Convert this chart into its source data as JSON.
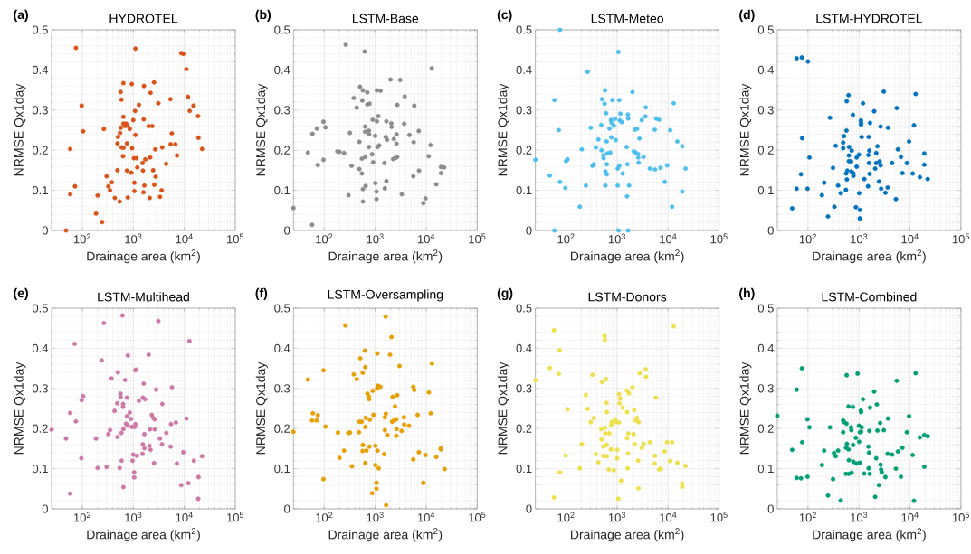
{
  "chart_data": [
    {
      "type": "scatter",
      "title": "HYDROTEL",
      "annotations": [
        "(a)"
      ],
      "xlabel": "Drainage area (km$^{2}$)",
      "ylabel": "NRMSE Qx1day",
      "color": "#d95319",
      "log": "x",
      "grid": true,
      "marker": "circle",
      "xlim": [
        25,
        100000
      ],
      "ylim": [
        0,
        0.5
      ],
      "xticks": [
        {
          "value": 100,
          "label": "10$^{2}$"
        },
        {
          "value": 1000,
          "label": "10$^{3}$"
        },
        {
          "value": 10000,
          "label": "10$^{4}$"
        },
        {
          "value": 100000,
          "label": "10$^{5}$"
        }
      ],
      "yticks": [
        0,
        0.1,
        0.2,
        0.3,
        0.4,
        0.5
      ],
      "x": [
        48,
        75,
        58,
        58,
        72,
        97,
        104,
        186,
        200,
        245,
        265,
        300,
        325,
        350,
        380,
        435,
        490,
        490,
        500,
        540,
        550,
        565,
        570,
        585,
        590,
        630,
        640,
        640,
        640,
        645,
        690,
        725,
        750,
        750,
        775,
        780,
        850,
        910,
        935,
        950,
        1000,
        1030,
        1050,
        1050,
        1100,
        1080,
        1100,
        1150,
        1200,
        1290,
        1520,
        1550,
        1580,
        1600,
        1620,
        1650,
        1720,
        2000,
        2100,
        2150,
        2180,
        2350,
        2450,
        2550,
        2580,
        2700,
        2750,
        3100,
        3350,
        3600,
        3700,
        4400,
        5350,
        5400,
        5700,
        6700,
        7200,
        8700,
        9550,
        11000,
        11800,
        12800,
        15200,
        18600,
        19000,
        22300
      ],
      "values": [
        0,
        0.455,
        0.203,
        0.09,
        0.11,
        0.311,
        0.247,
        0.042,
        0.087,
        0.021,
        0.253,
        0.135,
        0.11,
        0.1,
        0.12,
        0.081,
        0.217,
        0.15,
        0.233,
        0.072,
        0.243,
        0.345,
        0.256,
        0.326,
        0.207,
        0.185,
        0.266,
        0.283,
        0.367,
        0.206,
        0.26,
        0.266,
        0.149,
        0.217,
        0.261,
        0.082,
        0.253,
        0.144,
        0.365,
        0.205,
        0.275,
        0.18,
        0.119,
        0.098,
        0.453,
        0.298,
        0.238,
        0.18,
        0.157,
        0.313,
        0.168,
        0.149,
        0.095,
        0.277,
        0.36,
        0.112,
        0.177,
        0.26,
        0.081,
        0.182,
        0.343,
        0.26,
        0.15,
        0.369,
        0.114,
        0.202,
        0.134,
        0.317,
        0.084,
        0.1,
        0.207,
        0.166,
        0.327,
        0.215,
        0.242,
        0.215,
        0.187,
        0.442,
        0.44,
        0.402,
        0.333,
        0.298,
        0.311,
        0.285,
        0.231,
        0.203
      ]
    },
    {
      "type": "scatter",
      "title": "LSTM-Base",
      "annotations": [
        "(b)"
      ],
      "xlabel": "Drainage area (km$^{2}$)",
      "ylabel": "NRMSE Qx1day",
      "color": "#8c8c8c",
      "log": "x",
      "grid": true,
      "marker": "circle",
      "xlim": [
        25,
        100000
      ],
      "ylim": [
        0,
        0.5
      ],
      "xticks": [
        {
          "value": 100,
          "label": "10$^{2}$"
        },
        {
          "value": 1000,
          "label": "10$^{3}$"
        },
        {
          "value": 10000,
          "label": "10$^{4}$"
        },
        {
          "value": 100000,
          "label": "10$^{5}$"
        }
      ],
      "yticks": [
        0,
        0.1,
        0.2,
        0.3,
        0.4,
        0.5
      ],
      "x": [
        25,
        58,
        48,
        59,
        72,
        75,
        97,
        97,
        106,
        182,
        200,
        245,
        265,
        300,
        320,
        345,
        380,
        435,
        490,
        490,
        505,
        550,
        550,
        560,
        575,
        575,
        575,
        620,
        635,
        635,
        640,
        650,
        700,
        700,
        755,
        760,
        775,
        755,
        870,
        895,
        910,
        1000,
        1010,
        1060,
        1060,
        1080,
        1080,
        1110,
        1150,
        1200,
        1270,
        1520,
        1550,
        1610,
        1660,
        1660,
        1700,
        2000,
        2080,
        2100,
        2250,
        2330,
        2500,
        2620,
        2620,
        2700,
        2720,
        3100,
        3330,
        3700,
        3800,
        4700,
        5700,
        5850,
        5600,
        7250,
        7150,
        8800,
        9700,
        11200,
        12200,
        12900,
        15800,
        19500,
        19500,
        22500
      ],
      "values": [
        0.056,
        0.014,
        0.194,
        0.241,
        0.254,
        0.163,
        0.271,
        0.176,
        0.257,
        0.197,
        0.196,
        0.193,
        0.463,
        0.088,
        0.243,
        0.161,
        0.33,
        0.306,
        0.221,
        0.153,
        0.358,
        0.179,
        0.142,
        0.324,
        0.349,
        0.103,
        0.072,
        0.446,
        0.259,
        0.246,
        0.183,
        0.111,
        0.344,
        0.314,
        0.249,
        0.24,
        0.316,
        0.208,
        0.19,
        0.276,
        0.17,
        0.236,
        0.118,
        0.078,
        0.097,
        0.349,
        0.272,
        0.208,
        0.285,
        0.212,
        0.348,
        0.168,
        0.105,
        0.233,
        0.272,
        0.123,
        0.226,
        0.376,
        0.267,
        0.258,
        0.178,
        0.228,
        0.181,
        0.216,
        0.24,
        0.183,
        0.313,
        0.375,
        0.09,
        0.266,
        0.334,
        0.238,
        0.22,
        0.311,
        0.135,
        0.149,
        0.248,
        0.068,
        0.08,
        0.185,
        0.213,
        0.404,
        0.115,
        0.158,
        0.143,
        0.157
      ]
    },
    {
      "type": "scatter",
      "title": "LSTM-Meteo",
      "annotations": [
        "(c)"
      ],
      "xlabel": "Drainage area (km$^{2}$)",
      "ylabel": "NRMSE Qx1day",
      "color": "#4dbeee",
      "log": "x",
      "grid": true,
      "marker": "circle",
      "xlim": [
        25,
        100000
      ],
      "ylim": [
        0,
        0.5
      ],
      "xticks": [
        {
          "value": 100,
          "label": "10$^{2}$"
        },
        {
          "value": 1000,
          "label": "10$^{3}$"
        },
        {
          "value": 10000,
          "label": "10$^{4}$"
        },
        {
          "value": 100000,
          "label": "10$^{5}$"
        }
      ],
      "yticks": [
        0,
        0.1,
        0.2,
        0.3,
        0.4,
        0.5
      ],
      "x": [
        25,
        48,
        59,
        59,
        72,
        76,
        76,
        97,
        100,
        107,
        186,
        203,
        245,
        265,
        305,
        330,
        350,
        385,
        430,
        490,
        495,
        505,
        540,
        545,
        570,
        580,
        590,
        590,
        610,
        625,
        630,
        630,
        640,
        710,
        735,
        760,
        775,
        785,
        810,
        865,
        915,
        945,
        1030,
        1030,
        1060,
        1070,
        1100,
        1110,
        1130,
        1160,
        1240,
        1290,
        1540,
        1570,
        1590,
        1630,
        1650,
        1650,
        1720,
        2010,
        2130,
        2220,
        2300,
        2460,
        2570,
        2600,
        2650,
        2750,
        3050,
        3300,
        3650,
        3600,
        4400,
        5550,
        5500,
        5850,
        6650,
        7100,
        8600,
        9600,
        11000,
        12000,
        12900,
        15200,
        19000,
        19000,
        22000
      ],
      "values": [
        0.176,
        0.137,
        0,
        0.325,
        0.25,
        0.5,
        0.121,
        0.106,
        0.173,
        0.177,
        0.059,
        0.202,
        0.112,
        0.395,
        0.256,
        0.161,
        0.165,
        0.207,
        0.227,
        0.263,
        0.2,
        0.327,
        0.188,
        0.18,
        0.316,
        0.349,
        0.147,
        0.112,
        0.292,
        0.222,
        0.165,
        0.14,
        0.192,
        0.254,
        0.194,
        0.275,
        0.232,
        0.268,
        0.325,
        0.261,
        0.278,
        0.225,
        0.154,
        0.112,
        0.445,
        0,
        0.325,
        0.161,
        0.274,
        0.291,
        0.27,
        0.142,
        0.208,
        0.085,
        0.165,
        0.289,
        0.279,
        0,
        0.112,
        0.345,
        0.197,
        0.251,
        0.194,
        0.253,
        0.191,
        0.182,
        0.169,
        0.229,
        0.275,
        0.183,
        0.307,
        0.284,
        0.154,
        0.152,
        0.251,
        0.279,
        0.276,
        0.156,
        0.121,
        0.162,
        0.25,
        0.059,
        0.317,
        0.222,
        0.097,
        0.21,
        0.154
      ]
    },
    {
      "type": "scatter",
      "title": "LSTM-HYDROTEL",
      "annotations": [
        "(d)"
      ],
      "xlabel": "Drainage area (km$^{2}$)",
      "ylabel": "NRMSE Qx1day",
      "color": "#0072bd",
      "log": "x",
      "grid": true,
      "marker": "circle",
      "xlim": [
        25,
        100000
      ],
      "ylim": [
        0,
        0.5
      ],
      "xticks": [
        {
          "value": 100,
          "label": "10$^{2}$"
        },
        {
          "value": 1000,
          "label": "10$^{3}$"
        },
        {
          "value": 10000,
          "label": "10$^{4}$"
        },
        {
          "value": 100000,
          "label": "10$^{5}$"
        }
      ],
      "yticks": [
        0,
        0.1,
        0.2,
        0.3,
        0.4,
        0.5
      ],
      "x": [
        49,
        60,
        60,
        73,
        76,
        77,
        98,
        100,
        107,
        188,
        208,
        247,
        270,
        310,
        330,
        350,
        390,
        440,
        490,
        490,
        510,
        555,
        560,
        570,
        575,
        580,
        590,
        625,
        635,
        640,
        635,
        700,
        710,
        720,
        760,
        770,
        780,
        870,
        900,
        900,
        1000,
        1010,
        1040,
        1040,
        1090,
        1100,
        1100,
        1130,
        1200,
        1270,
        1510,
        1530,
        1550,
        1570,
        1600,
        1620,
        1650,
        1990,
        2080,
        2180,
        2180,
        2300,
        2470,
        2540,
        2650,
        2650,
        2720,
        3070,
        3300,
        3650,
        3700,
        4470,
        5500,
        5300,
        5800,
        6650,
        7100,
        8700,
        9600,
        11300,
        12000,
        12900,
        15600,
        19100,
        19100,
        22300
      ],
      "values": [
        0.055,
        0.104,
        0.429,
        0.14,
        0.431,
        0.23,
        0.104,
        0.421,
        0.182,
        0.088,
        0.119,
        0.035,
        0.281,
        0.156,
        0.059,
        0.211,
        0.112,
        0.093,
        0.219,
        0.205,
        0.235,
        0.101,
        0.142,
        0.249,
        0.322,
        0.127,
        0.149,
        0.337,
        0.187,
        0.208,
        0.173,
        0.172,
        0.147,
        0.199,
        0.288,
        0.143,
        0.136,
        0.058,
        0.182,
        0.159,
        0.189,
        0.093,
        0.051,
        0.03,
        0.274,
        0.268,
        0.264,
        0.233,
        0.317,
        0.128,
        0.11,
        0.188,
        0.233,
        0.168,
        0.199,
        0.141,
        0.268,
        0.297,
        0.154,
        0.193,
        0.168,
        0.21,
        0.122,
        0.172,
        0.259,
        0.162,
        0.104,
        0.346,
        0.094,
        0.107,
        0.256,
        0.168,
        0.305,
        0.078,
        0.202,
        0.183,
        0.143,
        0.168,
        0.222,
        0.142,
        0.262,
        0.34,
        0.133,
        0.192,
        0.164,
        0.128
      ]
    },
    {
      "type": "scatter",
      "title": "LSTM-Multihead",
      "annotations": [
        "(e)"
      ],
      "xlabel": "Drainage area (km$^{2}$)",
      "ylabel": "NRMSE Qx1day",
      "color": "#cc79a7",
      "log": "x",
      "grid": true,
      "marker": "circle",
      "xlim": [
        25,
        100000
      ],
      "ylim": [
        0,
        0.5
      ],
      "xticks": [
        {
          "value": 100,
          "label": "10$^{2}$"
        },
        {
          "value": 1000,
          "label": "10$^{3}$"
        },
        {
          "value": 10000,
          "label": "10$^{4}$"
        },
        {
          "value": 100000,
          "label": "10$^{5}$"
        }
      ],
      "yticks": [
        0,
        0.1,
        0.2,
        0.3,
        0.4,
        0.5
      ],
      "x": [
        25,
        48,
        58,
        58,
        71,
        75,
        96,
        97,
        104,
        186,
        200,
        240,
        265,
        300,
        325,
        350,
        375,
        430,
        485,
        490,
        500,
        540,
        560,
        565,
        585,
        590,
        615,
        630,
        630,
        640,
        640,
        690,
        720,
        750,
        750,
        775,
        785,
        850,
        900,
        935,
        970,
        1000,
        1040,
        1040,
        1070,
        1090,
        1100,
        1130,
        1180,
        1290,
        1540,
        1520,
        1540,
        1600,
        1650,
        1650,
        1700,
        2000,
        2080,
        2130,
        2180,
        2300,
        2450,
        2550,
        2620,
        2620,
        2800,
        3100,
        3330,
        3650,
        3700,
        4450,
        5400,
        5500,
        5750,
        6850,
        7150,
        8700,
        9550,
        11000,
        12000,
        12600,
        15400,
        19000,
        18800,
        22300
      ],
      "values": [
        0.197,
        0.175,
        0.038,
        0.239,
        0.411,
        0.218,
        0.126,
        0.271,
        0.281,
        0.175,
        0.102,
        0.37,
        0.463,
        0.104,
        0.186,
        0.196,
        0.325,
        0.244,
        0.263,
        0.179,
        0.34,
        0.102,
        0.287,
        0.279,
        0.189,
        0.12,
        0.482,
        0.261,
        0.254,
        0.199,
        0.054,
        0.321,
        0.212,
        0.277,
        0.231,
        0.208,
        0.382,
        0.24,
        0.224,
        0.204,
        0.12,
        0.135,
        0.091,
        0.078,
        0.204,
        0.345,
        0.211,
        0.347,
        0.132,
        0.269,
        0.277,
        0.137,
        0.161,
        0.312,
        0.186,
        0.151,
        0.273,
        0.384,
        0.157,
        0.198,
        0.147,
        0.234,
        0.227,
        0.114,
        0.223,
        0.198,
        0.297,
        0.468,
        0.175,
        0.161,
        0.261,
        0.189,
        0.155,
        0.211,
        0.303,
        0.215,
        0.113,
        0.059,
        0.141,
        0.225,
        0.064,
        0.418,
        0.12,
        0.079,
        0.025,
        0.131
      ]
    },
    {
      "type": "scatter",
      "title": "LSTM-Oversampling",
      "annotations": [
        "(f)"
      ],
      "xlabel": "Drainage area (km$^{2}$)",
      "ylabel": "NRMSE Qx1day",
      "color": "#e69f00",
      "log": "x",
      "grid": true,
      "marker": "circle",
      "xlim": [
        25,
        100000
      ],
      "ylim": [
        0,
        0.5
      ],
      "xticks": [
        {
          "value": 100,
          "label": "10$^{2}$"
        },
        {
          "value": 1000,
          "label": "10$^{3}$"
        },
        {
          "value": 10000,
          "label": "10$^{4}$"
        },
        {
          "value": 100000,
          "label": "10$^{5}$"
        }
      ],
      "yticks": [
        0,
        0.1,
        0.2,
        0.3,
        0.4,
        0.5
      ],
      "x": [
        25,
        48,
        58,
        60,
        71,
        75,
        97,
        97,
        106,
        186,
        200,
        245,
        260,
        296,
        320,
        350,
        380,
        435,
        480,
        490,
        510,
        545,
        565,
        570,
        575,
        630,
        640,
        640,
        640,
        650,
        675,
        705,
        755,
        760,
        770,
        785,
        895,
        925,
        870,
        1010,
        1010,
        1060,
        1060,
        1090,
        1100,
        1110,
        1130,
        1170,
        1260,
        1500,
        1550,
        1600,
        1640,
        1620,
        1550,
        1730,
        1960,
        2090,
        2150,
        2200,
        2330,
        2450,
        2600,
        2600,
        2620,
        2700,
        3000,
        3300,
        3650,
        3700,
        4600,
        5600,
        5850,
        5600,
        6800,
        7200,
        8800,
        9700,
        11300,
        12300,
        13000,
        15800,
        19400,
        19400,
        23000
      ],
      "values": [
        0.192,
        0.322,
        0.22,
        0.238,
        0.22,
        0.233,
        0.074,
        0.345,
        0.205,
        0.19,
        0.127,
        0.145,
        0.457,
        0.189,
        0.19,
        0.106,
        0.335,
        0.323,
        0.191,
        0.217,
        0.375,
        0.217,
        0.144,
        0.339,
        0.159,
        0.394,
        0.353,
        0.204,
        0.114,
        0.227,
        0.145,
        0.287,
        0.28,
        0.273,
        0.155,
        0.222,
        0.294,
        0.234,
        0.039,
        0.157,
        0.109,
        0.065,
        0.05,
        0.3,
        0.387,
        0.145,
        0.307,
        0.101,
        0.304,
        0.136,
        0.196,
        0.479,
        0.009,
        0.237,
        0.228,
        0.184,
        0.384,
        0.428,
        0.217,
        0.279,
        0.22,
        0.255,
        0.182,
        0.223,
        0.199,
        0.283,
        0.356,
        0.194,
        0.228,
        0.21,
        0.207,
        0.304,
        0.296,
        0.123,
        0.234,
        0.141,
        0.065,
        0.134,
        0.29,
        0.238,
        0.362,
        0.129,
        0.151,
        0.148,
        0.099
      ]
    },
    {
      "type": "scatter",
      "title": "LSTM-Donors",
      "annotations": [
        "(g)"
      ],
      "xlabel": "Drainage area (km$^{2}$)",
      "ylabel": "NRMSE Qx1day",
      "color": "#ede04b",
      "log": "x",
      "grid": true,
      "marker": "circle",
      "xlim": [
        25,
        100000
      ],
      "ylim": [
        0,
        0.5
      ],
      "xticks": [
        {
          "value": 100,
          "label": "10$^{2}$"
        },
        {
          "value": 1000,
          "label": "10$^{3}$"
        },
        {
          "value": 10000,
          "label": "10$^{4}$"
        },
        {
          "value": 100000,
          "label": "10$^{5}$"
        }
      ],
      "yticks": [
        0,
        0.1,
        0.2,
        0.3,
        0.4,
        0.5
      ],
      "x": [
        25,
        48,
        58,
        58,
        72,
        75,
        76,
        98,
        107,
        186,
        203,
        245,
        265,
        305,
        330,
        350,
        385,
        430,
        490,
        495,
        505,
        540,
        545,
        570,
        575,
        580,
        590,
        610,
        625,
        625,
        630,
        630,
        690,
        705,
        760,
        770,
        785,
        865,
        915,
        960,
        1010,
        1010,
        1060,
        1090,
        1090,
        1120,
        1150,
        1200,
        1290,
        1550,
        1570,
        1570,
        1610,
        1640,
        1660,
        1710,
        2000,
        2110,
        2180,
        2230,
        2300,
        2450,
        2580,
        2620,
        2650,
        2780,
        3050,
        3300,
        3650,
        3700,
        4400,
        5500,
        5500,
        5750,
        6700,
        7200,
        8550,
        9550,
        11000,
        12000,
        12900,
        15200,
        19000,
        19000,
        22000
      ],
      "values": [
        0.32,
        0.351,
        0.445,
        0.028,
        0.336,
        0.395,
        0.091,
        0.133,
        0.248,
        0.101,
        0.161,
        0.284,
        0.249,
        0.216,
        0.334,
        0.226,
        0.136,
        0.116,
        0.199,
        0.173,
        0.316,
        0.155,
        0.132,
        0.431,
        0.421,
        0.202,
        0.188,
        0.323,
        0.159,
        0.264,
        0.131,
        0.241,
        0.098,
        0.188,
        0.148,
        0.209,
        0.216,
        0.096,
        0.223,
        0.216,
        0.147,
        0.126,
        0.025,
        0.286,
        0.215,
        0.263,
        0.275,
        0.07,
        0.252,
        0.295,
        0.176,
        0.241,
        0.101,
        0.138,
        0.188,
        0.288,
        0.303,
        0.186,
        0.246,
        0.161,
        0.22,
        0.227,
        0.12,
        0.051,
        0.216,
        0.338,
        0.152,
        0.162,
        0.348,
        0.329,
        0.166,
        0.132,
        0.113,
        0.277,
        0.098,
        0.1,
        0.143,
        0.166,
        0.119,
        0.166,
        0.455,
        0.115,
        0.063,
        0.055,
        0.107
      ]
    },
    {
      "type": "scatter",
      "title": "LSTM-Combined",
      "annotations": [
        "(h)"
      ],
      "xlabel": "Drainage area (km$^{2}$)",
      "ylabel": "NRMSE Qx1day",
      "color": "#009e73",
      "log": "x",
      "grid": true,
      "marker": "circle",
      "xlim": [
        25,
        100000
      ],
      "ylim": [
        0,
        0.5
      ],
      "xticks": [
        {
          "value": 100,
          "label": "10$^{2}$"
        },
        {
          "value": 1000,
          "label": "10$^{3}$"
        },
        {
          "value": 10000,
          "label": "10$^{4}$"
        },
        {
          "value": 100000,
          "label": "10$^{5}$"
        }
      ],
      "yticks": [
        0,
        0.1,
        0.2,
        0.3,
        0.4,
        0.5
      ],
      "x": [
        25,
        49,
        60,
        60,
        73,
        76,
        77,
        98,
        98,
        107,
        188,
        208,
        247,
        270,
        310,
        325,
        350,
        390,
        440,
        490,
        490,
        510,
        555,
        560,
        570,
        575,
        580,
        625,
        625,
        635,
        635,
        700,
        710,
        720,
        760,
        770,
        780,
        870,
        900,
        940,
        1000,
        1010,
        1040,
        1040,
        1090,
        1100,
        1100,
        1130,
        1200,
        1270,
        1530,
        1550,
        1570,
        1600,
        1620,
        1650,
        1990,
        2080,
        2180,
        2240,
        2300,
        2470,
        2600,
        2650,
        2720,
        2800,
        3070,
        3300,
        3650,
        3700,
        4470,
        5500,
        5300,
        5800,
        6650,
        7100,
        8700,
        9600,
        11300,
        12000,
        12900,
        15600,
        19100,
        19100,
        22300
      ],
      "values": [
        0.232,
        0.147,
        0.297,
        0.077,
        0.076,
        0.35,
        0.166,
        0.08,
        0.223,
        0.203,
        0.109,
        0.145,
        0.033,
        0.203,
        0.074,
        0.139,
        0.131,
        0.145,
        0.021,
        0.22,
        0.191,
        0.216,
        0.087,
        0.152,
        0.212,
        0.333,
        0.162,
        0.255,
        0.148,
        0.121,
        0.087,
        0.203,
        0.196,
        0.09,
        0.254,
        0.159,
        0.117,
        0.177,
        0.113,
        0.337,
        0.207,
        0.167,
        0.191,
        0.115,
        0.245,
        0.241,
        0.192,
        0.203,
        0.273,
        0.088,
        0.155,
        0.101,
        0.14,
        0.194,
        0.087,
        0.252,
        0.292,
        0.03,
        0.126,
        0.26,
        0.195,
        0.059,
        0.214,
        0.11,
        0.098,
        0.091,
        0.196,
        0.079,
        0.137,
        0.225,
        0.135,
        0.319,
        0.1,
        0.143,
        0.08,
        0.152,
        0.191,
        0.231,
        0.134,
        0.02,
        0.338,
        0.178,
        0.105,
        0.184,
        0.181
      ]
    }
  ]
}
